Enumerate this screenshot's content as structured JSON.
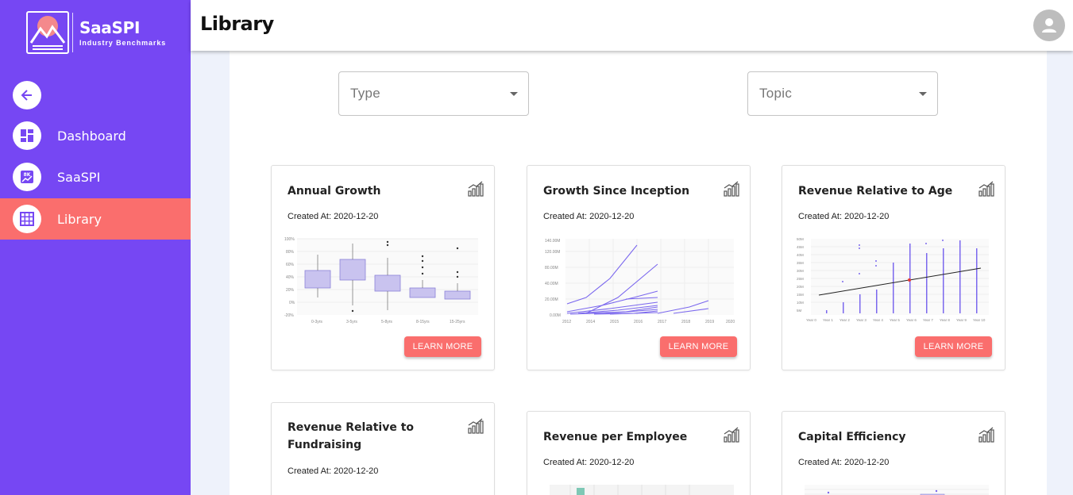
{
  "brand": {
    "name": "SaaSPI",
    "subtitle": "Industry Benchmarks"
  },
  "sidebar": {
    "back_icon": "arrow-left-icon",
    "items": [
      {
        "label": "Dashboard",
        "icon": "dashboard-icon",
        "active": false
      },
      {
        "label": "SaaSPI",
        "icon": "saaspi-chart-icon",
        "active": false
      },
      {
        "label": "Library",
        "icon": "grid-icon",
        "active": true
      }
    ]
  },
  "header": {
    "title": "Library",
    "avatar_icon": "user-avatar-icon"
  },
  "filters": {
    "type": {
      "label": "Type"
    },
    "topic": {
      "label": "Topic"
    }
  },
  "cards": [
    {
      "title": "Annual Growth",
      "date": "Created At: 2020-12-20",
      "button": "LEARN MORE",
      "chart_icon": "bar-chart-trend-icon"
    },
    {
      "title": "Growth Since Inception",
      "date": "Created At: 2020-12-20",
      "button": "LEARN MORE",
      "chart_icon": "bar-chart-trend-icon"
    },
    {
      "title": "Revenue Relative to Age",
      "date": "Created At: 2020-12-20",
      "button": "LEARN MORE",
      "chart_icon": "bar-chart-trend-icon"
    },
    {
      "title": "Revenue Relative to Fundraising",
      "date": "Created At: 2020-12-20",
      "chart_icon": "bar-chart-trend-icon"
    },
    {
      "title": "Revenue per Employee",
      "date": "Created At: 2020-12-20",
      "chart_icon": "bar-chart-trend-icon"
    },
    {
      "title": "Capital Efficiency",
      "date": "Created At: 2020-12-20",
      "chart_icon": "bar-chart-trend-icon"
    }
  ],
  "colors": {
    "sidebar": "#7647f3",
    "accent": "#fa6e6d",
    "chart": "#7b68ee"
  }
}
